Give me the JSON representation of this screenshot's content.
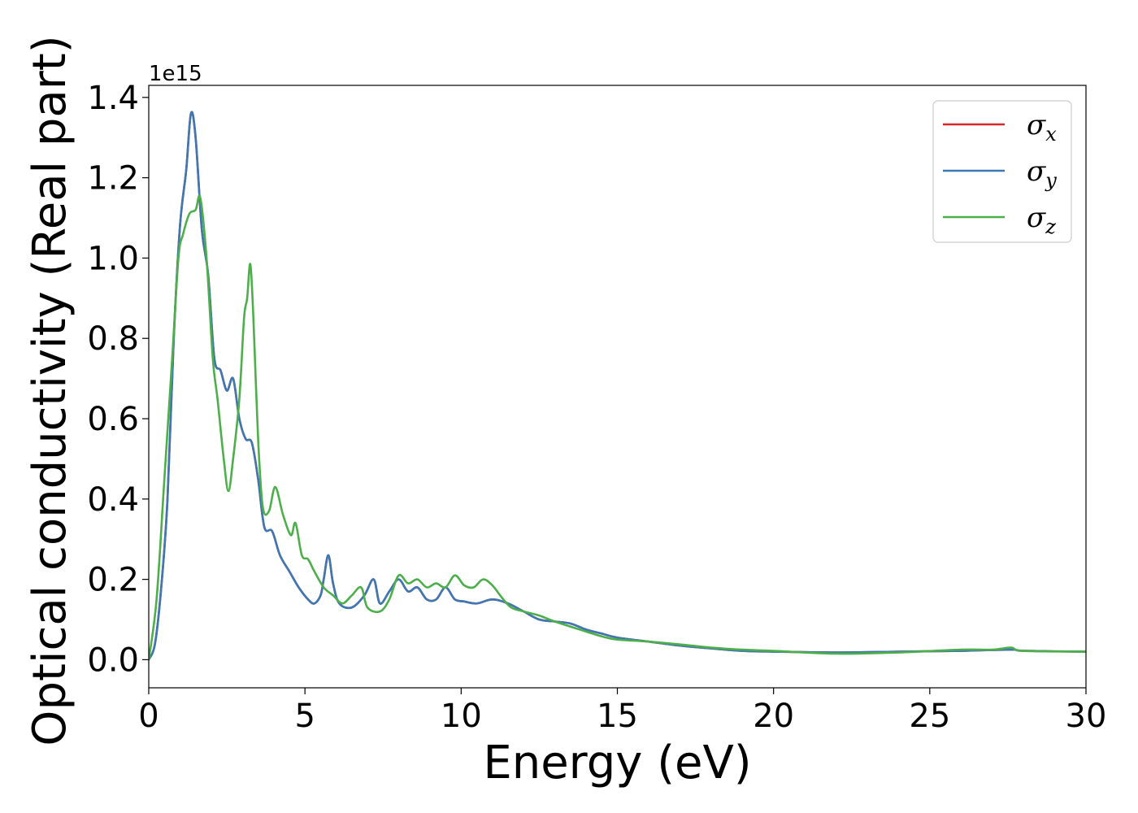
{
  "chart_data": {
    "type": "line",
    "xlabel": "Energy (eV)",
    "ylabel": "Optical conductivity (Real part)",
    "y_offset_text": "1e15",
    "xlim": [
      0,
      30
    ],
    "ylim": [
      -0.07,
      1.43
    ],
    "x_ticks": [
      0,
      5,
      10,
      15,
      20,
      25,
      30
    ],
    "x_tick_labels": [
      "0",
      "5",
      "10",
      "15",
      "20",
      "25",
      "30"
    ],
    "y_ticks": [
      0.0,
      0.2,
      0.4,
      0.6,
      0.8,
      1.0,
      1.2,
      1.4
    ],
    "y_tick_labels": [
      "0.0",
      "0.2",
      "0.4",
      "0.6",
      "0.8",
      "1.0",
      "1.2",
      "1.4"
    ],
    "grid": false,
    "legend_position": "top-right",
    "series": [
      {
        "name": "σ",
        "subscript": "x",
        "color": "#d62728",
        "x": [
          0,
          0.2,
          0.4,
          0.6,
          0.8,
          1.0,
          1.2,
          1.35,
          1.5,
          1.7,
          1.9,
          2.1,
          2.3,
          2.5,
          2.7,
          2.9,
          3.1,
          3.3,
          3.5,
          3.7,
          3.95,
          4.2,
          4.5,
          4.8,
          5.1,
          5.3,
          5.5,
          5.6,
          5.75,
          5.9,
          6.1,
          6.5,
          6.9,
          7.2,
          7.4,
          7.7,
          8.0,
          8.3,
          8.6,
          8.9,
          9.2,
          9.5,
          9.8,
          10.1,
          10.5,
          11.0,
          11.5,
          12.0,
          12.5,
          13.0,
          13.5,
          14.0,
          14.5,
          15.0,
          16.0,
          17.0,
          18.0,
          19.0,
          20.0,
          22.0,
          24.0,
          26.0,
          27.6,
          28.0,
          30.0
        ],
        "values": [
          0.0,
          0.04,
          0.18,
          0.4,
          0.8,
          1.08,
          1.22,
          1.36,
          1.3,
          1.07,
          0.96,
          0.75,
          0.72,
          0.67,
          0.7,
          0.6,
          0.55,
          0.54,
          0.45,
          0.33,
          0.32,
          0.26,
          0.22,
          0.18,
          0.15,
          0.14,
          0.16,
          0.2,
          0.26,
          0.19,
          0.14,
          0.13,
          0.16,
          0.2,
          0.14,
          0.17,
          0.2,
          0.17,
          0.18,
          0.15,
          0.15,
          0.18,
          0.15,
          0.145,
          0.14,
          0.15,
          0.14,
          0.12,
          0.1,
          0.095,
          0.09,
          0.075,
          0.065,
          0.055,
          0.045,
          0.035,
          0.028,
          0.022,
          0.02,
          0.018,
          0.02,
          0.022,
          0.025,
          0.022,
          0.02
        ]
      },
      {
        "name": "σ",
        "subscript": "y",
        "color": "#3b78b4",
        "x": [
          0,
          0.2,
          0.4,
          0.6,
          0.8,
          1.0,
          1.2,
          1.35,
          1.5,
          1.7,
          1.9,
          2.1,
          2.3,
          2.5,
          2.7,
          2.9,
          3.1,
          3.3,
          3.5,
          3.7,
          3.95,
          4.2,
          4.5,
          4.8,
          5.1,
          5.3,
          5.5,
          5.6,
          5.75,
          5.9,
          6.1,
          6.5,
          6.9,
          7.2,
          7.4,
          7.7,
          8.0,
          8.3,
          8.6,
          8.9,
          9.2,
          9.5,
          9.8,
          10.1,
          10.5,
          11.0,
          11.5,
          12.0,
          12.5,
          13.0,
          13.5,
          14.0,
          14.5,
          15.0,
          16.0,
          17.0,
          18.0,
          19.0,
          20.0,
          22.0,
          24.0,
          26.0,
          27.6,
          28.0,
          30.0
        ],
        "values": [
          0.0,
          0.04,
          0.18,
          0.4,
          0.8,
          1.08,
          1.22,
          1.36,
          1.3,
          1.07,
          0.96,
          0.75,
          0.72,
          0.67,
          0.7,
          0.6,
          0.55,
          0.54,
          0.45,
          0.33,
          0.32,
          0.26,
          0.22,
          0.18,
          0.15,
          0.14,
          0.16,
          0.2,
          0.26,
          0.19,
          0.14,
          0.13,
          0.16,
          0.2,
          0.14,
          0.17,
          0.2,
          0.17,
          0.18,
          0.15,
          0.15,
          0.18,
          0.15,
          0.145,
          0.14,
          0.15,
          0.14,
          0.12,
          0.1,
          0.095,
          0.09,
          0.075,
          0.065,
          0.055,
          0.045,
          0.035,
          0.028,
          0.022,
          0.02,
          0.018,
          0.02,
          0.022,
          0.025,
          0.022,
          0.02
        ]
      },
      {
        "name": "σ",
        "subscript": "z",
        "color": "#4daf4a",
        "x": [
          0,
          0.25,
          0.5,
          0.75,
          0.95,
          1.1,
          1.3,
          1.5,
          1.65,
          1.85,
          2.05,
          2.2,
          2.4,
          2.55,
          2.7,
          2.9,
          3.05,
          3.15,
          3.25,
          3.35,
          3.5,
          3.65,
          3.85,
          4.05,
          4.3,
          4.55,
          4.7,
          4.9,
          5.1,
          5.3,
          5.6,
          5.9,
          6.2,
          6.5,
          6.8,
          7.0,
          7.4,
          7.7,
          8.0,
          8.3,
          8.6,
          8.9,
          9.2,
          9.5,
          9.8,
          10.1,
          10.4,
          10.7,
          11.0,
          11.3,
          11.6,
          12.0,
          12.5,
          13.0,
          14.0,
          14.5,
          15.0,
          16.0,
          17.0,
          18.0,
          19.0,
          20.0,
          22.0,
          24.0,
          26.0,
          27.0,
          27.6,
          28.0,
          30.0
        ],
        "values": [
          0.0,
          0.15,
          0.45,
          0.75,
          1.0,
          1.06,
          1.11,
          1.12,
          1.15,
          1.0,
          0.75,
          0.65,
          0.5,
          0.42,
          0.5,
          0.65,
          0.85,
          0.9,
          0.985,
          0.85,
          0.55,
          0.38,
          0.37,
          0.43,
          0.36,
          0.31,
          0.34,
          0.26,
          0.25,
          0.22,
          0.18,
          0.16,
          0.14,
          0.16,
          0.18,
          0.13,
          0.12,
          0.15,
          0.21,
          0.19,
          0.2,
          0.18,
          0.19,
          0.18,
          0.21,
          0.185,
          0.18,
          0.2,
          0.185,
          0.155,
          0.13,
          0.12,
          0.11,
          0.095,
          0.07,
          0.058,
          0.05,
          0.045,
          0.038,
          0.03,
          0.025,
          0.022,
          0.015,
          0.018,
          0.025,
          0.025,
          0.03,
          0.022,
          0.02
        ]
      }
    ]
  }
}
